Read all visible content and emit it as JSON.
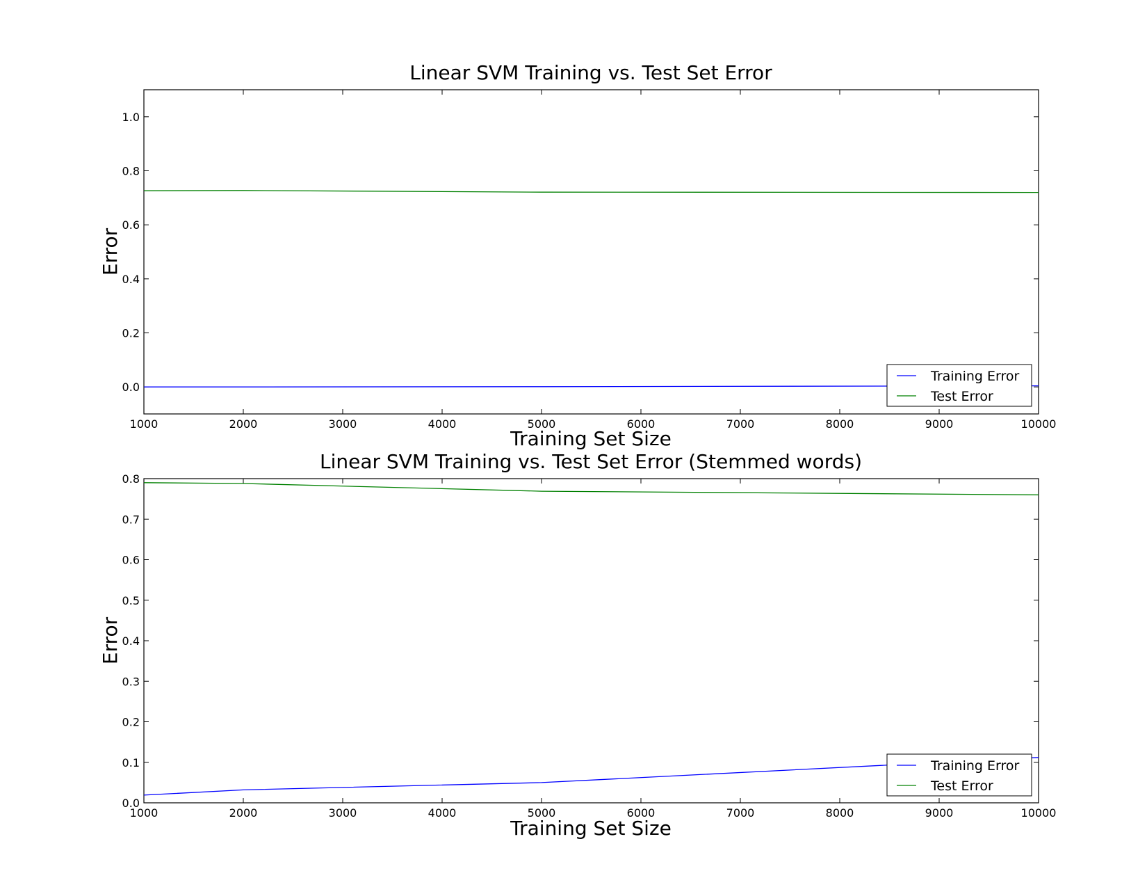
{
  "chart_data": [
    {
      "type": "line",
      "title": "Linear SVM Training vs. Test Set Error",
      "xlabel": "Training Set Size",
      "ylabel": "Error",
      "xlim": [
        1000,
        10000
      ],
      "ylim": [
        -0.1,
        1.1
      ],
      "xticks": [
        1000,
        2000,
        3000,
        4000,
        5000,
        6000,
        7000,
        8000,
        9000,
        10000
      ],
      "xtick_labels": [
        "1000",
        "2000",
        "3000",
        "4000",
        "5000",
        "6000",
        "7000",
        "8000",
        "9000",
        "10000"
      ],
      "yticks": [
        0.0,
        0.2,
        0.4,
        0.6,
        0.8,
        1.0
      ],
      "ytick_labels": [
        "0.0",
        "0.2",
        "0.4",
        "0.6",
        "0.8",
        "1.0"
      ],
      "grid": false,
      "legend_position": "bottom-right",
      "x": [
        1000,
        2000,
        5000,
        10000
      ],
      "series": [
        {
          "name": "Training Error",
          "color": "#0000ff",
          "values": [
            0.0,
            0.0,
            0.001,
            0.004
          ]
        },
        {
          "name": "Test Error",
          "color": "#008000",
          "values": [
            0.726,
            0.727,
            0.721,
            0.72
          ]
        }
      ]
    },
    {
      "type": "line",
      "title": "Linear SVM Training vs. Test Set Error (Stemmed words)",
      "xlabel": "Training Set Size",
      "ylabel": "Error",
      "xlim": [
        1000,
        10000
      ],
      "ylim": [
        0.0,
        0.8
      ],
      "xticks": [
        1000,
        2000,
        3000,
        4000,
        5000,
        6000,
        7000,
        8000,
        9000,
        10000
      ],
      "xtick_labels": [
        "1000",
        "2000",
        "3000",
        "4000",
        "5000",
        "6000",
        "7000",
        "8000",
        "9000",
        "10000"
      ],
      "yticks": [
        0.0,
        0.1,
        0.2,
        0.3,
        0.4,
        0.5,
        0.6,
        0.7,
        0.8
      ],
      "ytick_labels": [
        "0.0",
        "0.1",
        "0.2",
        "0.3",
        "0.4",
        "0.5",
        "0.6",
        "0.7",
        "0.8"
      ],
      "grid": false,
      "legend_position": "bottom-right",
      "x": [
        1000,
        2000,
        5000,
        10000
      ],
      "series": [
        {
          "name": "Training Error",
          "color": "#0000ff",
          "values": [
            0.019,
            0.032,
            0.05,
            0.112
          ]
        },
        {
          "name": "Test Error",
          "color": "#008000",
          "values": [
            0.79,
            0.788,
            0.769,
            0.76
          ]
        }
      ]
    }
  ]
}
